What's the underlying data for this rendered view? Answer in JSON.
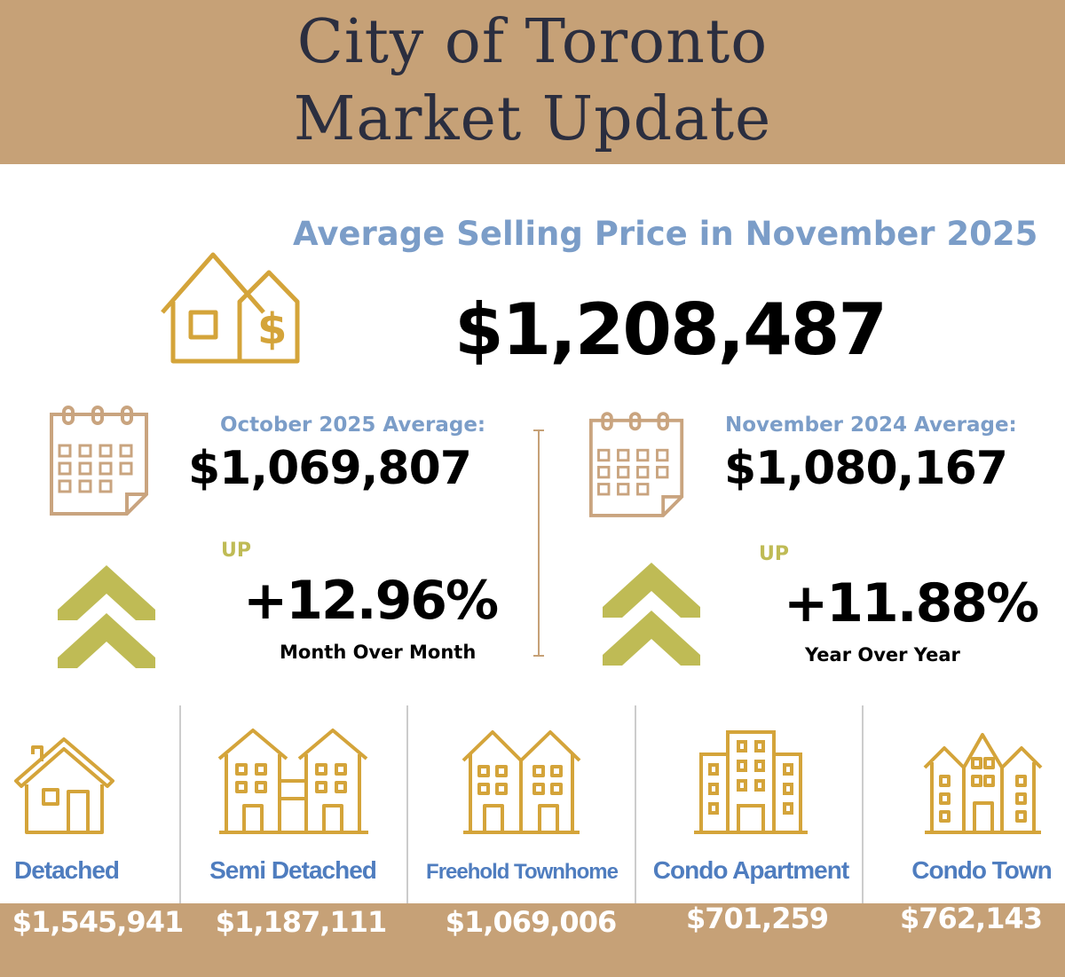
{
  "header": {
    "title_line1": "City of Toronto",
    "title_line2": "Market Update"
  },
  "headline": {
    "label": "Average Selling Price in November 2025",
    "price": "$1,208,487"
  },
  "month_over_month": {
    "label": "October  2025 Average:",
    "value": "$1,069,807",
    "direction": "UP",
    "change": "+12.96%",
    "period": "Month Over Month"
  },
  "year_over_year": {
    "label": "November 2024 Average:",
    "value": "$1,080,167",
    "direction": "UP",
    "change": "+11.88%",
    "period": "Year Over Year"
  },
  "categories": [
    {
      "label": "Detached",
      "price": "$1,545,941",
      "icon": "detached-house-icon"
    },
    {
      "label": "Semi Detached",
      "price": "$1,187,111",
      "icon": "semi-detached-icon"
    },
    {
      "label": "Freehold Townhome",
      "price": "$1,069,006",
      "icon": "townhome-icon"
    },
    {
      "label": "Condo Apartment",
      "price": "$701,259",
      "icon": "condo-building-icon"
    },
    {
      "label": "Condo Town",
      "price": "$762,143",
      "icon": "condo-town-icon"
    }
  ],
  "colors": {
    "tan": "#c6a177",
    "blue": "#7b9dc8",
    "gold": "#d4a43a",
    "olive": "#bfbb55",
    "navy": "#2b2e3f"
  }
}
